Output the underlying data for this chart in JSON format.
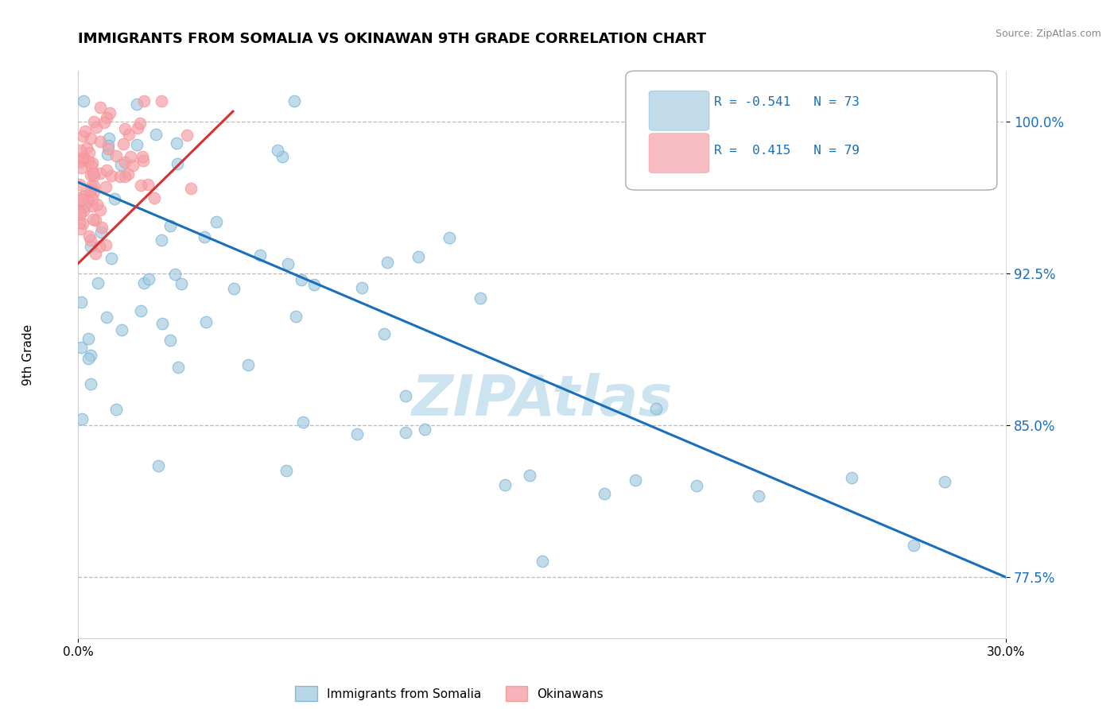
{
  "title": "IMMIGRANTS FROM SOMALIA VS OKINAWAN 9TH GRADE CORRELATION CHART",
  "source_text": "Source: ZipAtlas.com",
  "ylabel": "9th Grade",
  "xlim": [
    0.0,
    0.3
  ],
  "ylim": [
    0.745,
    1.025
  ],
  "yticks": [
    0.775,
    0.85,
    0.925,
    1.0
  ],
  "ytick_labels": [
    "77.5%",
    "85.0%",
    "92.5%",
    "100.0%"
  ],
  "xtick_positions": [
    0.0,
    0.3
  ],
  "xtick_labels": [
    "0.0%",
    "30.0%"
  ],
  "legend_line1": "R = -0.541   N = 73",
  "legend_line2": "R =  0.415   N = 79",
  "legend_label_blue": "Immigrants from Somalia",
  "legend_label_pink": "Okinawans",
  "blue_color": "#a8cce0",
  "pink_color": "#f4a0a8",
  "blue_edge_color": "#6baed6",
  "pink_edge_color": "#fc8d8d",
  "trendline_blue_color": "#1a6fba",
  "trendline_pink_color": "#d63030",
  "legend_text_color": "#1a6fba",
  "ytick_color": "#1a6fba",
  "watermark_text": "ZIPAtlas",
  "watermark_color": "#cce4f0",
  "blue_trend_x0": 0.0,
  "blue_trend_y0": 0.97,
  "blue_trend_x1": 0.3,
  "blue_trend_y1": 0.775,
  "pink_trend_x0": 0.0,
  "pink_trend_y0": 0.93,
  "pink_trend_x1": 0.05,
  "pink_trend_y1": 1.005
}
